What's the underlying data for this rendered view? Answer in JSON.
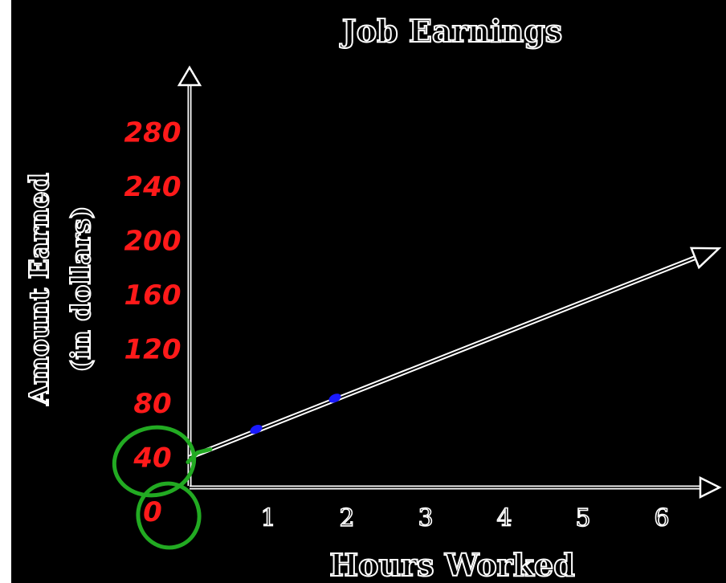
{
  "chart_data": {
    "type": "line",
    "title": "Job Earnings",
    "xlabel": "Hours Worked",
    "ylabel": "Amount Earned",
    "ylabel_sub": "(in dollars)",
    "xlim": [
      0,
      6
    ],
    "ylim": [
      0,
      280
    ],
    "x_ticks": [
      "1",
      "2",
      "3",
      "4",
      "5",
      "6"
    ],
    "y_ticks": [
      "0",
      "40",
      "80",
      "120",
      "160",
      "200",
      "240",
      "280"
    ],
    "series": [
      {
        "x": [
          0,
          1,
          2,
          6.5
        ],
        "y": [
          40,
          63,
          86,
          189
        ]
      }
    ],
    "highlighted_points": [
      {
        "x": 1,
        "y": 63
      },
      {
        "x": 2,
        "y": 86
      }
    ],
    "circled_ticks": [
      "0",
      "40"
    ],
    "colors": {
      "background": "#000000",
      "axis": "#ffffff",
      "handwriting": "#ff1a1a",
      "points": "#1a1aff",
      "circles": "#22aa22"
    },
    "grid": false
  }
}
